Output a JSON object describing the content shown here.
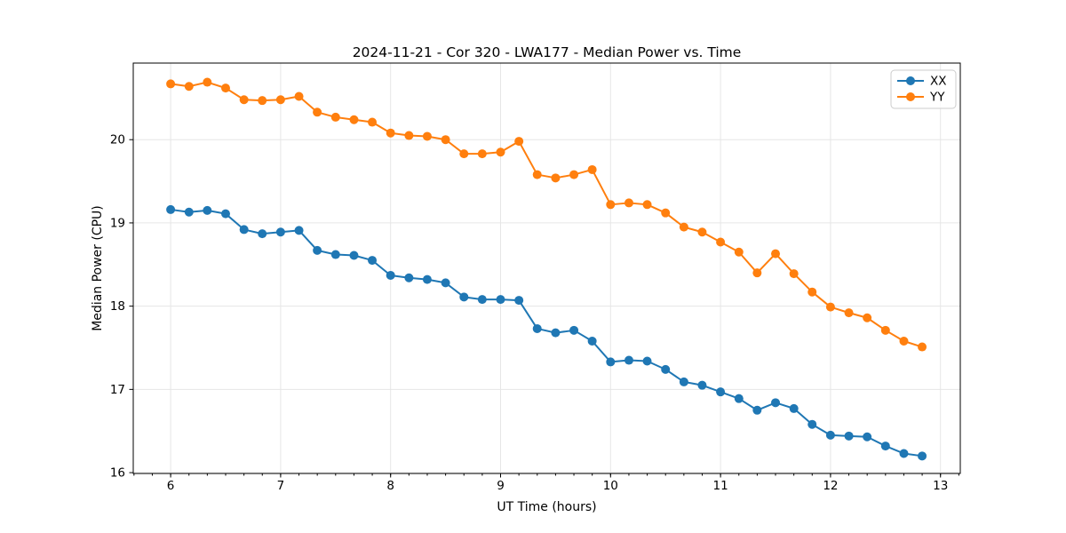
{
  "chart_data": {
    "type": "line",
    "title": "2024-11-21 - Cor 320 - LWA177 - Median Power vs. Time",
    "xlabel": "UT Time (hours)",
    "ylabel": "Median Power (CPU)",
    "xlim": [
      5.66,
      13.18
    ],
    "ylim": [
      15.99,
      20.92
    ],
    "xticks": [
      6,
      7,
      8,
      9,
      10,
      11,
      12,
      13
    ],
    "yticks": [
      16,
      17,
      18,
      19,
      20
    ],
    "x_minor_step": 0.166667,
    "grid": true,
    "grid_color": "#e6e6e6",
    "legend_position": "upper right",
    "x": [
      6.0,
      6.167,
      6.333,
      6.5,
      6.667,
      6.833,
      7.0,
      7.167,
      7.333,
      7.5,
      7.667,
      7.833,
      8.0,
      8.167,
      8.333,
      8.5,
      8.667,
      8.833,
      9.0,
      9.167,
      9.333,
      9.5,
      9.667,
      9.833,
      10.0,
      10.167,
      10.333,
      10.5,
      10.667,
      10.833,
      11.0,
      11.167,
      11.333,
      11.5,
      11.667,
      11.833,
      12.0,
      12.167,
      12.333,
      12.5,
      12.667,
      12.833
    ],
    "series": [
      {
        "name": "XX",
        "color": "#1f77b4",
        "values": [
          19.16,
          19.13,
          19.15,
          19.11,
          18.92,
          18.87,
          18.89,
          18.91,
          18.67,
          18.62,
          18.61,
          18.55,
          18.37,
          18.34,
          18.32,
          18.28,
          18.11,
          18.08,
          18.08,
          18.07,
          17.73,
          17.68,
          17.71,
          17.58,
          17.33,
          17.35,
          17.34,
          17.24,
          17.09,
          17.05,
          16.97,
          16.89,
          16.75,
          16.84,
          16.77,
          16.58,
          16.45,
          16.44,
          16.43,
          16.32,
          16.23,
          16.2
        ]
      },
      {
        "name": "YY",
        "color": "#ff7f0e",
        "values": [
          20.67,
          20.64,
          20.69,
          20.62,
          20.48,
          20.47,
          20.48,
          20.52,
          20.33,
          20.27,
          20.24,
          20.21,
          20.08,
          20.05,
          20.04,
          20.0,
          19.83,
          19.83,
          19.85,
          19.98,
          19.58,
          19.54,
          19.58,
          19.64,
          19.22,
          19.24,
          19.22,
          19.12,
          18.95,
          18.89,
          18.77,
          18.65,
          18.4,
          18.63,
          18.39,
          18.17,
          17.99,
          17.92,
          17.86,
          17.71,
          17.58,
          17.51
        ]
      }
    ]
  }
}
